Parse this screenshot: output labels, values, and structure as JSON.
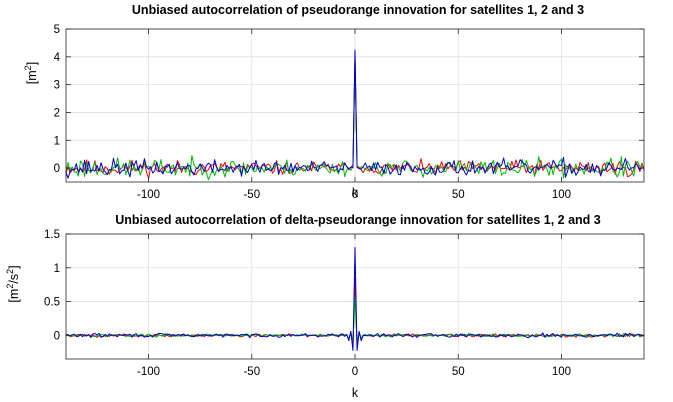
{
  "chart_data": [
    {
      "type": "line",
      "title": "Unbiased autocorrelation of pseudorange innovation for satellites 1, 2 and 3",
      "xlabel": "k",
      "ylabel": "[m²]",
      "ylabel_base": "[m",
      "ylabel_sup": "2",
      "ylabel_end": "]",
      "xlim": [
        -140,
        140
      ],
      "ylim": [
        -0.5,
        5
      ],
      "xticks": [
        -100,
        -50,
        0,
        50,
        100
      ],
      "xtick_labels": [
        "-100",
        "-50",
        "0",
        "50",
        "100"
      ],
      "yticks": [
        0,
        1,
        2,
        3,
        4,
        5
      ],
      "ytick_labels": [
        "0",
        "1",
        "2",
        "3",
        "4",
        "5"
      ],
      "grid": true,
      "series": [
        {
          "color": "#ff0000",
          "peak": 4.05,
          "near": [
            0.1,
            0.05,
            -0.05
          ],
          "noise": 0.13,
          "seed": 11
        },
        {
          "color": "#00bb00",
          "peak": 3.95,
          "near": [
            0.05,
            -0.05,
            0.05
          ],
          "noise": 0.16,
          "seed": 23
        },
        {
          "color": "#0000cc",
          "peak": 4.25,
          "near": [
            0.05,
            0.0,
            -0.05
          ],
          "noise": 0.14,
          "seed": 37
        }
      ]
    },
    {
      "type": "line",
      "title": "Unbiased autocorrelation of delta-pseudorange innovation for satellites 1, 2 and 3",
      "xlabel": "k",
      "ylabel": "[m²/s²]",
      "ylabel_base": "[m",
      "ylabel_sup": "2",
      "ylabel_mid": "/s",
      "ylabel_sup2": "2",
      "ylabel_end": "]",
      "xlim": [
        -140,
        140
      ],
      "ylim": [
        -0.35,
        1.5
      ],
      "xticks": [
        -100,
        -50,
        0,
        50,
        100
      ],
      "xtick_labels": [
        "-100",
        "-50",
        "0",
        "50",
        "100"
      ],
      "yticks": [
        0,
        0.5,
        1,
        1.5
      ],
      "ytick_labels": [
        "0",
        "0.5",
        "1",
        "1.5"
      ],
      "grid": true,
      "series": [
        {
          "color": "#ff0000",
          "peak": 0.85,
          "near": [
            -0.18,
            0.05,
            -0.06
          ],
          "noise": 0.012,
          "seed": 5
        },
        {
          "color": "#00bb00",
          "peak": 0.55,
          "near": [
            -0.1,
            0.04,
            -0.04
          ],
          "noise": 0.01,
          "seed": 17
        },
        {
          "color": "#0000cc",
          "peak": 1.3,
          "near": [
            -0.22,
            0.06,
            -0.08
          ],
          "noise": 0.014,
          "seed": 29
        }
      ]
    }
  ]
}
